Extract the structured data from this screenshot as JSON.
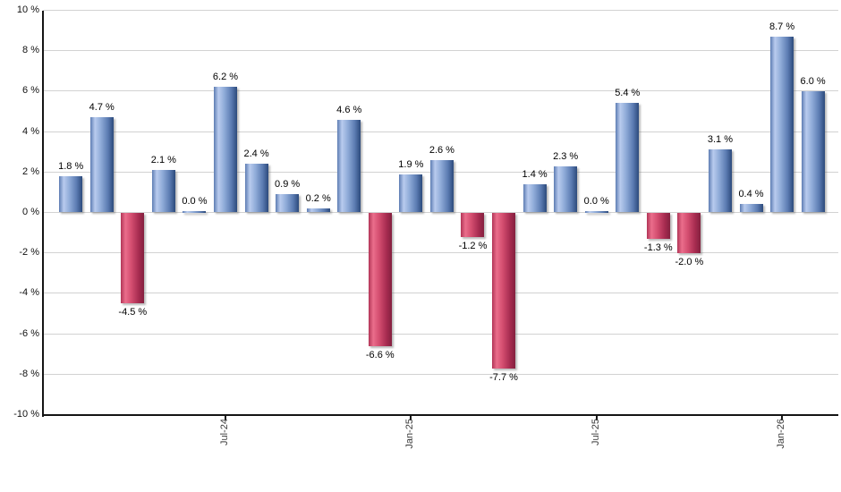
{
  "chart_data": {
    "type": "bar",
    "description": "Monthly total returns bar chart, positive months blue, negative months red",
    "ylim": [
      -10,
      10
    ],
    "y_tick_step": 2,
    "grid": true,
    "legend": false,
    "y_tick_labels": [
      "10 %",
      "8 %",
      "6 %",
      "4 %",
      "2 %",
      "0 %",
      "-2 %",
      "-4 %",
      "-6 %",
      "-8 %",
      "-10 %"
    ],
    "values": [
      1.8,
      4.7,
      -4.5,
      2.1,
      0.0,
      6.2,
      2.4,
      0.9,
      0.2,
      4.6,
      -6.6,
      1.9,
      2.6,
      -1.2,
      -7.7,
      1.4,
      2.3,
      0.0,
      5.4,
      -1.3,
      -2.0,
      3.1,
      0.4,
      8.7,
      6.0
    ],
    "bar_labels": [
      "1.8 %",
      "4.7 %",
      "-4.5 %",
      "2.1 %",
      "0.0 %",
      "6.2 %",
      "2.4 %",
      "0.9 %",
      "0.2 %",
      "4.6 %",
      "-6.6 %",
      "1.9 %",
      "2.6 %",
      "-1.2 %",
      "-7.7 %",
      "1.4 %",
      "2.3 %",
      "0.0 %",
      "5.4 %",
      "-1.3 %",
      "-2.0 %",
      "3.1 %",
      "0.4 %",
      "8.7 %",
      "6.0 %"
    ],
    "x_tick_labels": [
      {
        "index": 5,
        "label": "Jul-24"
      },
      {
        "index": 11,
        "label": "Jan-25"
      },
      {
        "index": 17,
        "label": "Jul-25"
      },
      {
        "index": 23,
        "label": "Jan-26"
      }
    ],
    "colors": {
      "positive_bar": "#6e8fc9",
      "negative_bar": "#c34a67",
      "gridline": "#d2d2d2",
      "axis": "#151515",
      "value_label": "#000000",
      "tick_label": "#3c3c3c",
      "background": "#ffffff"
    }
  }
}
